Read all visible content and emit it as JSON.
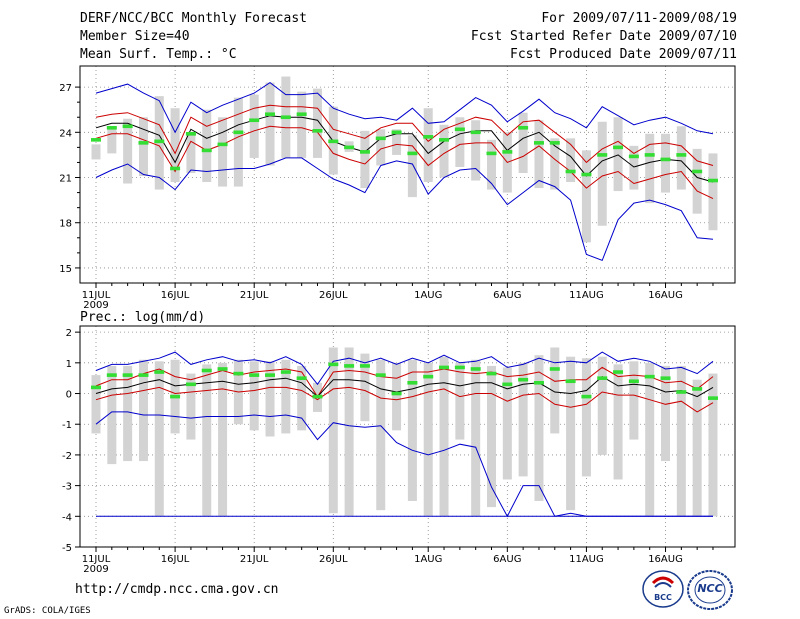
{
  "header": {
    "left": [
      "DERF/NCC/BCC Monthly Forecast",
      "Member Size=40",
      "Mean Surf. Temp.: °C"
    ],
    "right": [
      "For 2009/07/11-2009/08/19",
      "Fcst Started Refer Date 2009/07/10",
      "Fcst Produced Date 2009/07/11"
    ]
  },
  "footer": {
    "url": "http://cmdp.ncc.cma.gov.cn",
    "credit": "GrADS: COLA/IGES",
    "logo_bcc": "BCC",
    "logo_ncc": "NCC"
  },
  "colors": {
    "envelope": "#0000cc",
    "spread": "#cc0000",
    "mean": "#000000",
    "obs_marker": "#33dd33",
    "range_bar": "#d3d3d3"
  },
  "chart_data": [
    {
      "type": "line",
      "title": "Mean Surf. Temp.: °C",
      "x_tick_labels": [
        "11JUL",
        "16JUL",
        "21JUL",
        "26JUL",
        "1AUG",
        "6AUG",
        "11AUG",
        "16AUG"
      ],
      "x_tick_day_index": [
        0,
        5,
        10,
        15,
        21,
        26,
        31,
        36
      ],
      "x_sub_label": "2009",
      "y_ticks": [
        15,
        18,
        21,
        24,
        27
      ],
      "ylim": [
        14,
        28.4
      ],
      "grid": true,
      "days": 40,
      "series": {
        "max": [
          26.6,
          26.9,
          27.2,
          26.6,
          26.1,
          24.0,
          26.0,
          25.3,
          25.8,
          26.2,
          26.6,
          27.3,
          26.5,
          26.5,
          26.6,
          25.6,
          25.2,
          24.9,
          25.0,
          24.8,
          25.6,
          24.6,
          24.7,
          25.5,
          26.3,
          25.8,
          24.7,
          25.4,
          26.2,
          25.3,
          24.9,
          24.3,
          25.7,
          25.1,
          24.5,
          24.8,
          25.0,
          24.6,
          24.1,
          23.9
        ],
        "upper": [
          25.0,
          25.2,
          25.3,
          24.9,
          24.5,
          22.6,
          25.0,
          24.4,
          24.8,
          25.2,
          25.6,
          25.8,
          25.7,
          25.7,
          25.6,
          24.2,
          23.9,
          23.6,
          24.3,
          24.6,
          24.6,
          23.4,
          24.2,
          24.6,
          25.0,
          24.8,
          23.8,
          24.7,
          24.8,
          24.0,
          23.2,
          22.0,
          22.9,
          23.4,
          22.6,
          23.2,
          23.3,
          23.1,
          22.1,
          21.8
        ],
        "mean": [
          24.3,
          24.6,
          24.6,
          24.2,
          23.8,
          22.0,
          24.2,
          23.6,
          24.0,
          24.5,
          24.8,
          25.1,
          25.0,
          25.0,
          24.8,
          23.4,
          23.0,
          22.7,
          23.6,
          23.9,
          23.9,
          22.6,
          23.4,
          23.9,
          24.1,
          24.1,
          22.8,
          23.6,
          24.0,
          23.1,
          22.4,
          21.1,
          22.1,
          22.5,
          21.7,
          22.0,
          22.2,
          22.1,
          21.0,
          20.7
        ],
        "lower": [
          23.6,
          23.9,
          23.9,
          23.5,
          23.1,
          21.4,
          23.4,
          22.8,
          23.2,
          23.7,
          24.1,
          24.4,
          24.3,
          24.3,
          24.0,
          22.6,
          22.2,
          21.9,
          22.9,
          23.2,
          23.1,
          21.8,
          22.6,
          23.2,
          23.3,
          23.3,
          22.0,
          22.4,
          23.1,
          22.2,
          21.4,
          20.3,
          21.1,
          21.4,
          20.6,
          20.9,
          21.2,
          21.4,
          20.1,
          19.6
        ],
        "min": [
          21.0,
          21.5,
          21.9,
          21.2,
          21.0,
          20.2,
          21.5,
          21.4,
          21.5,
          21.6,
          21.6,
          21.9,
          22.3,
          22.3,
          21.6,
          20.9,
          20.5,
          20.0,
          21.8,
          22.1,
          21.9,
          19.9,
          21.0,
          21.5,
          21.6,
          20.6,
          19.2,
          20.0,
          20.8,
          20.4,
          19.5,
          15.9,
          15.5,
          18.2,
          19.3,
          19.5,
          19.2,
          18.8,
          17.0,
          16.9
        ],
        "bar_top": [
          23.2,
          24.4,
          24.9,
          25.0,
          26.4,
          25.6,
          23.9,
          25.5,
          25.0,
          26.3,
          26.5,
          27.3,
          27.7,
          26.7,
          26.9,
          25.7,
          23.4,
          24.1,
          24.2,
          24.2,
          23.8,
          25.6,
          24.5,
          25.0,
          24.8,
          23.5,
          24.0,
          25.3,
          24.8,
          23.6,
          23.6,
          22.8,
          24.7,
          25.0,
          23.1,
          23.9,
          23.9,
          24.4,
          22.9,
          22.6
        ],
        "bar_bottom": [
          22.2,
          22.6,
          20.6,
          21.1,
          20.2,
          20.7,
          21.3,
          20.7,
          20.4,
          20.4,
          22.3,
          21.8,
          22.3,
          22.3,
          22.3,
          21.2,
          22.7,
          20.3,
          21.8,
          22.5,
          19.7,
          20.7,
          21.0,
          21.7,
          20.8,
          20.2,
          20.0,
          21.3,
          20.3,
          20.2,
          20.7,
          16.7,
          17.8,
          20.1,
          20.2,
          19.3,
          20.0,
          20.2,
          18.6,
          17.5
        ],
        "obs": [
          23.5,
          24.3,
          24.4,
          23.3,
          23.4,
          21.6,
          23.9,
          22.8,
          23.2,
          24.0,
          24.8,
          25.2,
          25.0,
          25.2,
          24.1,
          23.4,
          23.0,
          22.7,
          23.6,
          24.0,
          22.6,
          23.7,
          23.5,
          24.2,
          24.0,
          22.6,
          22.7,
          24.3,
          23.3,
          23.3,
          21.4,
          21.2,
          22.5,
          23.0,
          22.4,
          22.5,
          22.2,
          22.5,
          21.4,
          20.8
        ]
      }
    },
    {
      "type": "line",
      "title": "Prec.: log(mm/d)",
      "x_tick_labels": [
        "11JUL",
        "16JUL",
        "21JUL",
        "26JUL",
        "1AUG",
        "6AUG",
        "11AUG",
        "16AUG"
      ],
      "x_tick_day_index": [
        0,
        5,
        10,
        15,
        21,
        26,
        31,
        36
      ],
      "x_sub_label": "2009",
      "y_ticks": [
        -5,
        -4,
        -3,
        -2,
        -1,
        0,
        1,
        2
      ],
      "ylim": [
        -5,
        2.2
      ],
      "grid": true,
      "days": 40,
      "series": {
        "max": [
          0.75,
          0.95,
          0.95,
          1.05,
          1.15,
          1.35,
          0.95,
          1.1,
          1.2,
          1.05,
          1.1,
          1.0,
          1.2,
          0.95,
          0.3,
          1.05,
          1.15,
          1.0,
          1.15,
          0.95,
          1.15,
          1.0,
          1.25,
          1.0,
          1.05,
          1.2,
          0.85,
          0.95,
          1.15,
          1.0,
          1.05,
          1.0,
          1.35,
          1.05,
          1.15,
          1.05,
          0.8,
          0.85,
          0.65,
          1.05
        ],
        "upper": [
          0.25,
          0.45,
          0.45,
          0.65,
          0.8,
          0.55,
          0.45,
          0.6,
          0.75,
          0.6,
          0.7,
          0.75,
          0.8,
          0.7,
          -0.1,
          0.7,
          0.75,
          0.7,
          0.55,
          0.5,
          0.7,
          0.7,
          0.8,
          0.7,
          0.65,
          0.7,
          0.55,
          0.6,
          0.7,
          0.4,
          0.45,
          0.45,
          0.85,
          0.55,
          0.6,
          0.55,
          0.35,
          0.4,
          0.15,
          0.55
        ],
        "mean": [
          0.0,
          0.15,
          0.2,
          0.35,
          0.45,
          0.25,
          0.3,
          0.35,
          0.4,
          0.3,
          0.35,
          0.45,
          0.5,
          0.35,
          -0.1,
          0.45,
          0.45,
          0.4,
          0.15,
          0.05,
          0.15,
          0.3,
          0.35,
          0.25,
          0.35,
          0.35,
          0.15,
          0.3,
          0.35,
          0.05,
          0.0,
          0.1,
          0.55,
          0.25,
          0.3,
          0.25,
          0.05,
          0.1,
          -0.1,
          0.2
        ],
        "lower": [
          -0.2,
          -0.05,
          0.0,
          0.1,
          0.2,
          0.0,
          0.05,
          0.1,
          0.15,
          0.05,
          0.1,
          0.2,
          0.2,
          0.1,
          -0.2,
          0.15,
          0.2,
          0.1,
          -0.15,
          -0.2,
          -0.1,
          0.05,
          0.15,
          -0.1,
          0.0,
          0.0,
          -0.25,
          -0.05,
          0.0,
          -0.35,
          -0.45,
          -0.35,
          0.05,
          -0.05,
          -0.05,
          -0.2,
          -0.35,
          -0.25,
          -0.6,
          -0.3
        ],
        "min": [
          -1.0,
          -0.6,
          -0.6,
          -0.7,
          -0.7,
          -0.75,
          -0.8,
          -0.75,
          -0.75,
          -0.75,
          -0.7,
          -0.75,
          -0.7,
          -0.8,
          -1.5,
          -0.95,
          -1.05,
          -1.1,
          -1.05,
          -1.6,
          -1.85,
          -2.0,
          -1.85,
          -1.65,
          -1.75,
          -3.05,
          -4.0,
          -3.0,
          -3.0,
          -4.0,
          -3.9,
          -4.0,
          -4.0,
          -4.0,
          -4.0,
          -4.0,
          -4.0,
          -4.0,
          -4.0,
          -4.0
        ],
        "bar_top": [
          0.6,
          0.9,
          0.9,
          1.1,
          1.05,
          1.1,
          0.65,
          0.95,
          1.0,
          1.1,
          1.05,
          1.05,
          1.1,
          0.9,
          0.35,
          1.5,
          1.5,
          1.3,
          1.1,
          1.0,
          1.1,
          1.0,
          1.2,
          1.0,
          1.1,
          0.9,
          0.85,
          1.0,
          1.25,
          1.5,
          1.2,
          1.15,
          1.2,
          0.95,
          1.05,
          1.0,
          0.9,
          0.9,
          0.45,
          0.65
        ],
        "bar_bottom": [
          -1.3,
          -2.3,
          -2.2,
          -2.2,
          -4.0,
          -1.3,
          -1.5,
          -4.0,
          -4.0,
          -1.0,
          -1.2,
          -1.4,
          -1.3,
          -1.2,
          -0.6,
          -3.9,
          -4.0,
          -0.9,
          -3.8,
          -1.2,
          -3.5,
          -4.0,
          -4.0,
          -1.5,
          -4.0,
          -3.7,
          -2.8,
          -2.7,
          -3.5,
          -1.3,
          -3.8,
          -2.7,
          -2.0,
          -2.8,
          -1.5,
          -4.0,
          -2.2,
          -4.0,
          -4.0,
          -4.0
        ],
        "obs": [
          0.2,
          0.6,
          0.6,
          0.6,
          0.7,
          -0.1,
          0.3,
          0.75,
          0.8,
          0.65,
          0.6,
          0.6,
          0.7,
          0.5,
          -0.1,
          0.95,
          0.9,
          0.9,
          0.6,
          0.0,
          0.35,
          0.55,
          0.85,
          0.85,
          0.8,
          0.65,
          0.3,
          0.45,
          0.35,
          0.8,
          0.4,
          -0.1,
          0.5,
          0.7,
          0.4,
          0.55,
          0.5,
          0.05,
          0.15,
          -0.15
        ]
      },
      "floor_line": -4.0
    }
  ]
}
